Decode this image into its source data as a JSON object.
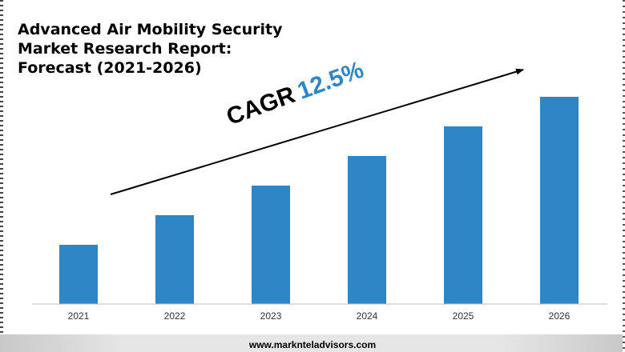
{
  "title_lines": [
    "Advanced Air Mobility Security",
    "Market Research Report:",
    "Forecast (2021-2026)"
  ],
  "annotation": {
    "label": "CAGR",
    "value": "12.5%"
  },
  "footer": {
    "url": "www.marknteladvisors.com"
  },
  "colors": {
    "bar": "#2f86c6",
    "accent_text": "#2f86c6",
    "axis": "#bdbdbd",
    "footer_bg": "#dcdcdc"
  },
  "chart_data": {
    "type": "bar",
    "title": "Advanced Air Mobility Security Market Research Report: Forecast (2021-2026)",
    "categories": [
      "2021",
      "2022",
      "2023",
      "2024",
      "2025",
      "2026"
    ],
    "values": [
      1.0,
      1.5,
      2.0,
      2.5,
      3.0,
      3.5
    ],
    "value_note": "relative bar heights; no value axis shown",
    "xlabel": "",
    "ylabel": "",
    "ylim": [
      0,
      3.5
    ],
    "grid": false,
    "annotations": [
      "CAGR 12.5%"
    ]
  }
}
